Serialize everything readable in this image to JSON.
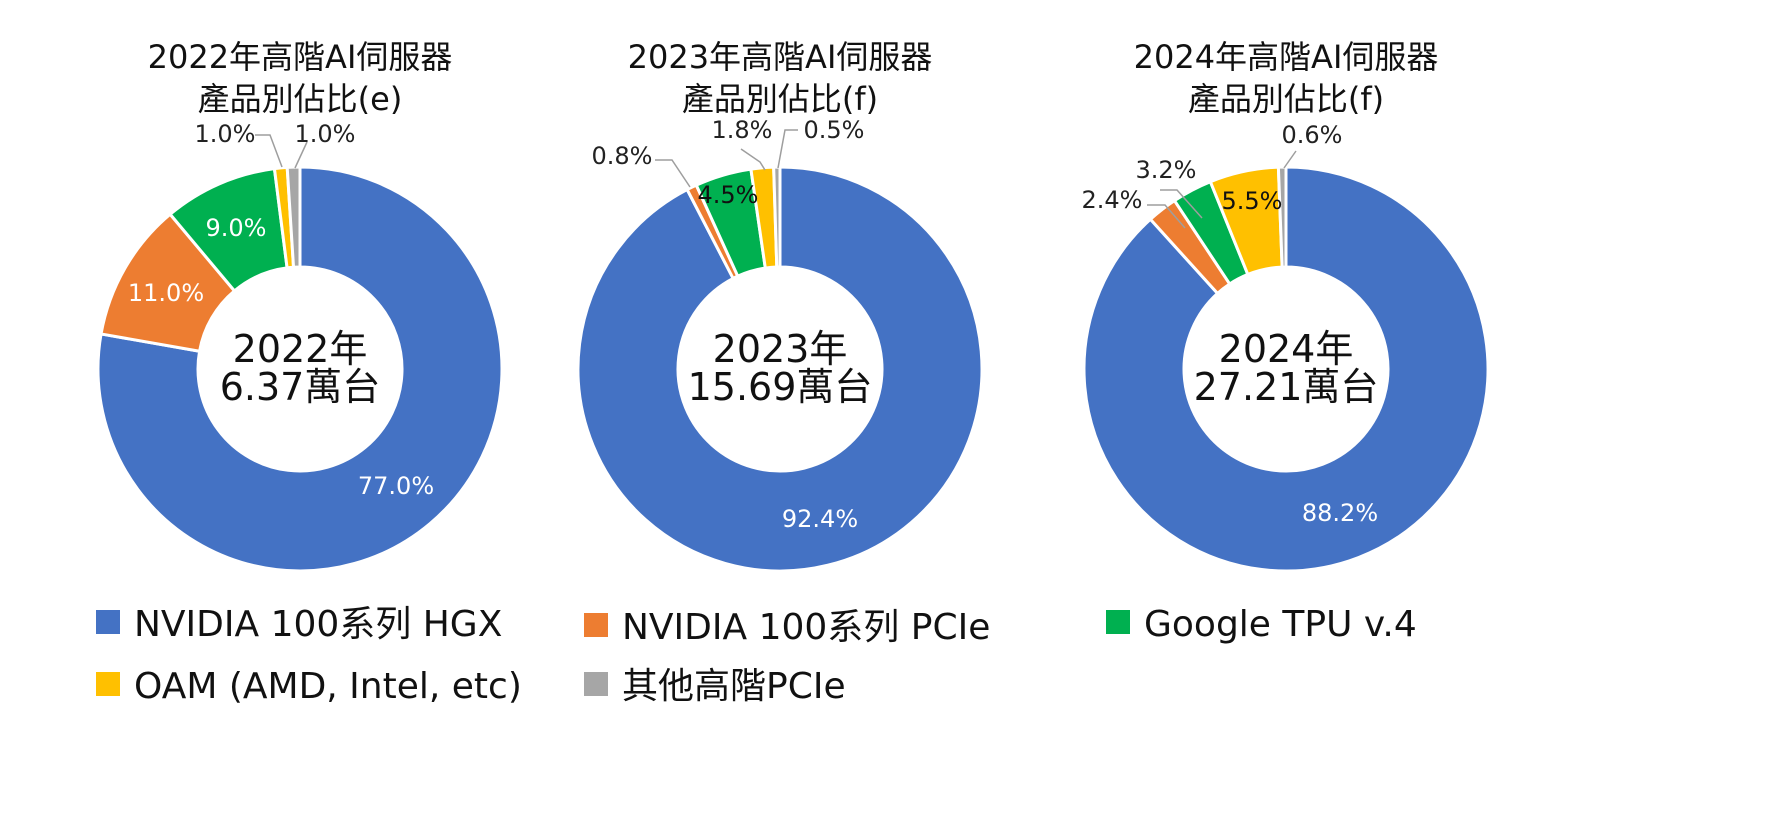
{
  "chart_data": [
    {
      "type": "pie",
      "title": [
        "2022年高階AI伺服器",
        "產品別佔比(e)"
      ],
      "center_label": [
        "2022年",
        "6.37萬台"
      ],
      "categories": [
        "NVIDIA 100系列 HGX",
        "NVIDIA 100系列 PCIe",
        "Google TPU v.4",
        "OAM (AMD, Intel, etc)",
        "其他高階PCIe"
      ],
      "values": [
        77.0,
        11.0,
        9.0,
        1.0,
        1.0
      ],
      "labels": [
        "77.0%",
        "11.0%",
        "9.0%",
        "1.0%",
        "1.0%"
      ]
    },
    {
      "type": "pie",
      "title": [
        "2023年高階AI伺服器",
        "產品別佔比(f)"
      ],
      "center_label": [
        "2023年",
        "15.69萬台"
      ],
      "categories": [
        "NVIDIA 100系列 HGX",
        "NVIDIA 100系列 PCIe",
        "Google TPU v.4",
        "OAM (AMD, Intel, etc)",
        "其他高階PCIe"
      ],
      "values": [
        92.4,
        0.8,
        4.5,
        1.8,
        0.5
      ],
      "labels": [
        "92.4%",
        "0.8%",
        "4.5%",
        "1.8%",
        "0.5%"
      ]
    },
    {
      "type": "pie",
      "title": [
        "2024年高階AI伺服器",
        "產品別佔比(f)"
      ],
      "center_label": [
        "2024年",
        "27.21萬台"
      ],
      "categories": [
        "NVIDIA 100系列 HGX",
        "NVIDIA 100系列 PCIe",
        "Google TPU v.4",
        "OAM (AMD, Intel, etc)",
        "其他高階PCIe"
      ],
      "values": [
        88.2,
        2.4,
        3.2,
        5.5,
        0.6
      ],
      "labels": [
        "88.2%",
        "2.4%",
        "3.2%",
        "5.5%",
        "0.6%"
      ]
    }
  ],
  "legend": [
    {
      "label": "NVIDIA 100系列 HGX",
      "color": "#4472C4"
    },
    {
      "label": "NVIDIA 100系列 PCIe",
      "color": "#ED7D31"
    },
    {
      "label": "Google TPU v.4",
      "color": "#00B050"
    },
    {
      "label": "OAM (AMD, Intel, etc)",
      "color": "#FFC000"
    },
    {
      "label": "其他高階PCIe",
      "color": "#A6A6A6"
    }
  ]
}
